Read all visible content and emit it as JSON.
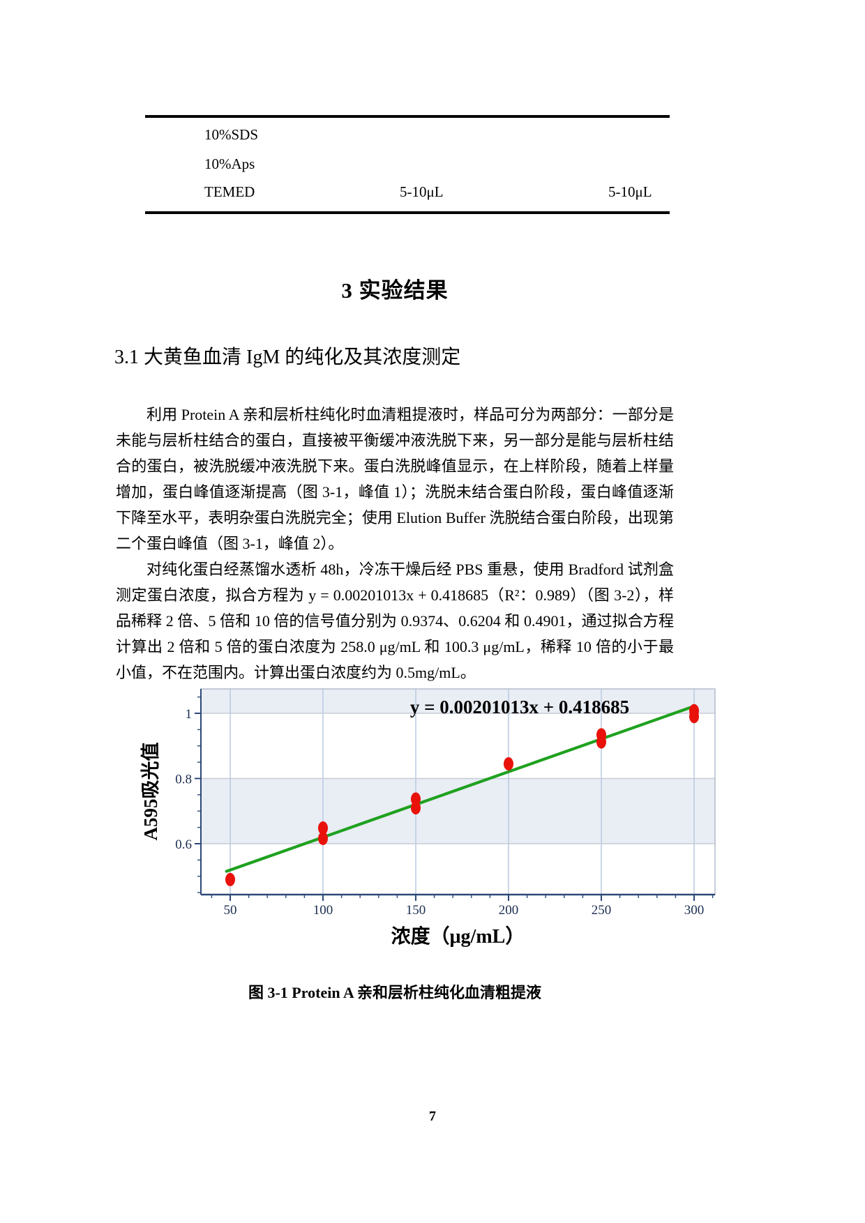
{
  "table": {
    "rows": [
      {
        "label": "10%SDS",
        "col2": "",
        "col3": ""
      },
      {
        "label": "10%Aps",
        "col2": "",
        "col3": ""
      },
      {
        "label": "TEMED",
        "col2": "5-10μL",
        "col3": "5-10μL"
      }
    ]
  },
  "heading": "3 实验结果",
  "subheading": "3.1 大黄鱼血清 IgM 的纯化及其浓度测定",
  "paragraphs": {
    "p1": "利用 Protein A 亲和层析柱纯化时血清粗提液时，样品可分为两部分：一部分是未能与层析柱结合的蛋白，直接被平衡缓冲液洗脱下来，另一部分是能与层析柱结合的蛋白，被洗脱缓冲液洗脱下来。蛋白洗脱峰值显示，在上样阶段，随着上样量增加，蛋白峰值逐渐提高（图 3-1，峰值 1）；洗脱未结合蛋白阶段，蛋白峰值逐渐下降至水平，表明杂蛋白洗脱完全；使用 Elution Buffer 洗脱结合蛋白阶段，出现第二个蛋白峰值（图 3-1，峰值 2）。",
    "p2": "对纯化蛋白经蒸馏水透析 48h，冷冻干燥后经 PBS 重悬，使用 Bradford 试剂盒测定蛋白浓度，拟合方程为 y = 0.00201013x + 0.418685（R²：0.989）（图 3-2），样品稀释 2 倍、5 倍和 10 倍的信号值分别为 0.9374、0.6204 和 0.4901，通过拟合方程计算出 2 倍和 5 倍的蛋白浓度为 258.0 μg/mL 和 100.3 μg/mL，稀释 10 倍的小于最小值，不在范围内。计算出蛋白浓度约为 0.5mg/mL。"
  },
  "chart_data": {
    "type": "scatter",
    "equation_label": "y = 0.00201013x + 0.418685",
    "xlabel": "浓度（μg/mL）",
    "ylabel": "A595吸光值",
    "x_ticks": [
      50,
      100,
      150,
      200,
      250,
      300
    ],
    "y_ticks": [
      0.6,
      0.8,
      1
    ],
    "x_minor_step": 10,
    "y_minor_step": 0.05,
    "xlim": [
      34,
      312
    ],
    "ylim": [
      0.444,
      1.075
    ],
    "shaded_bands_y": [
      [
        1.0,
        1.075
      ],
      [
        0.6,
        0.8
      ]
    ],
    "points": [
      {
        "x": 50,
        "y": 0.49
      },
      {
        "x": 100,
        "y": 0.648
      },
      {
        "x": 100,
        "y": 0.616
      },
      {
        "x": 150,
        "y": 0.737
      },
      {
        "x": 150,
        "y": 0.71
      },
      {
        "x": 200,
        "y": 0.845
      },
      {
        "x": 250,
        "y": 0.934
      },
      {
        "x": 250,
        "y": 0.912
      },
      {
        "x": 300,
        "y": 1.008
      },
      {
        "x": 300,
        "y": 0.99
      }
    ],
    "fit_line": {
      "slope": 0.00201013,
      "intercept": 0.418685,
      "x_start": 48,
      "x_end": 300
    },
    "colors": {
      "point": "#e8120b",
      "line": "#1fa11f",
      "band": "#e9edf4",
      "grid_vertical": "#bccbe2",
      "grid_horizontal": "#c7ccd6",
      "frame": "#aeb8ca",
      "axis": "#2c4878",
      "tick_label": "#1b2d52",
      "text": "#000000"
    }
  },
  "caption": "图 3-1 Protein A 亲和层析柱纯化血清粗提液",
  "page": {
    "number": "7"
  }
}
